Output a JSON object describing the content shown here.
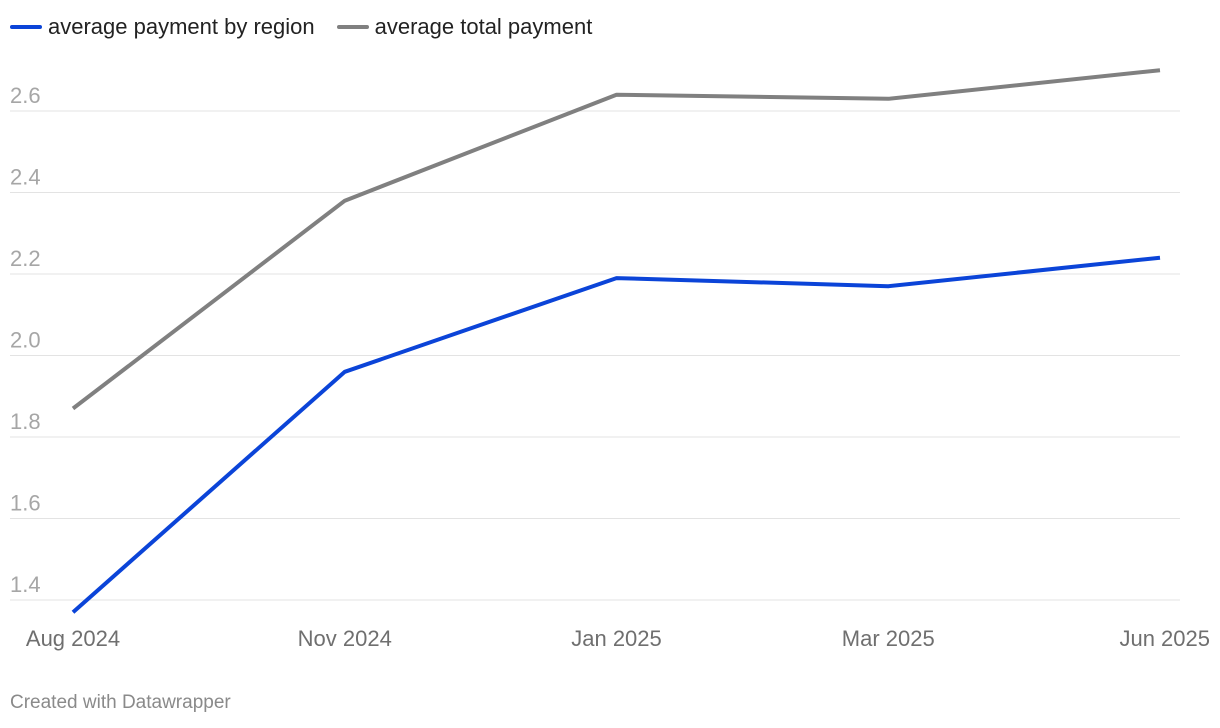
{
  "chart_data": {
    "type": "line",
    "title": "",
    "xlabel": "",
    "ylabel": "",
    "categories": [
      "Aug 2024",
      "Nov 2024",
      "Jan 2025",
      "Mar 2025",
      "Jun 2025"
    ],
    "series": [
      {
        "name": "average payment by region",
        "color": "#0b44d8",
        "values": [
          1.37,
          1.96,
          2.19,
          2.17,
          2.24
        ]
      },
      {
        "name": "average total payment",
        "color": "#808080",
        "values": [
          1.87,
          2.38,
          2.64,
          2.63,
          2.7
        ]
      }
    ],
    "yticks": [
      "1.4",
      "1.6",
      "1.8",
      "2.0",
      "2.2",
      "2.4",
      "2.6"
    ],
    "ylim": [
      1.35,
      2.75
    ],
    "grid": true,
    "legend": "top-left"
  },
  "credit": "Created with Datawrapper"
}
